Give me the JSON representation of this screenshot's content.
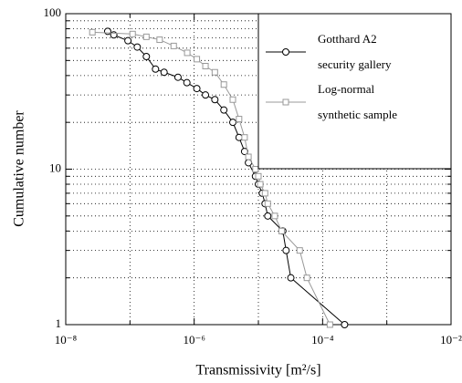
{
  "chart_data": {
    "type": "line",
    "x_label": "Transmissivity [m²/s]",
    "y_label": "Cumulative number",
    "xscale": "log",
    "yscale": "log",
    "xlim": [
      1e-08,
      0.01
    ],
    "ylim": [
      1,
      100
    ],
    "xticks": [
      {
        "value": 1e-08,
        "label": "10⁻⁸"
      },
      {
        "value": 1e-06,
        "label": "10⁻⁶"
      },
      {
        "value": 0.0001,
        "label": "10⁻⁴"
      },
      {
        "value": 0.01,
        "label": "10⁻²"
      }
    ],
    "xminorticks": [
      1e-07,
      1e-05,
      0.001
    ],
    "yticks": [
      1,
      10,
      100
    ],
    "yminorticks": [
      2,
      3,
      4,
      5,
      6,
      7,
      8,
      9,
      20,
      30,
      40,
      50,
      60,
      70,
      80,
      90
    ],
    "grid": true,
    "legend": "upper right",
    "series": [
      {
        "name": "Gotthard A2\nsecurity gallery",
        "color": "#000000",
        "marker": "circle",
        "x": [
          4.5e-08,
          5.6e-08,
          9.3e-08,
          1.3e-07,
          1.8e-07,
          2.5e-07,
          3.4e-07,
          5.6e-07,
          7.7e-07,
          1.1e-06,
          1.5e-06,
          2.1e-06,
          2.9e-06,
          4e-06,
          5e-06,
          6.1e-06,
          7e-06,
          9e-06,
          1e-05,
          1.15e-05,
          1.27e-05,
          1.4e-05,
          2.4e-05,
          2.7e-05,
          3.2e-05,
          0.00022
        ],
        "values": [
          77,
          73,
          67,
          61,
          53,
          44,
          42,
          39,
          36,
          33,
          30,
          28,
          24,
          20,
          16,
          13,
          11,
          9,
          8,
          7,
          6,
          5,
          4,
          3,
          2,
          1
        ]
      },
      {
        "name": "Log-normal\nsynthetic sample",
        "color": "#999999",
        "marker": "square",
        "x": [
          2.6e-08,
          1.1e-07,
          1.8e-07,
          2.9e-07,
          4.8e-07,
          7.8e-07,
          1.1e-06,
          1.5e-06,
          2.1e-06,
          2.9e-06,
          4e-06,
          5e-06,
          6.1e-06,
          7e-06,
          9e-06,
          1e-05,
          1.07e-05,
          1.27e-05,
          1.4e-05,
          1.8e-05,
          2.3e-05,
          4.4e-05,
          5.7e-05,
          0.00013
        ],
        "values": [
          76,
          74,
          71,
          68,
          62,
          56,
          51,
          46,
          42,
          35,
          28,
          21,
          16,
          12,
          10,
          9,
          8,
          7,
          6,
          5,
          4,
          3,
          2,
          1
        ]
      }
    ]
  }
}
